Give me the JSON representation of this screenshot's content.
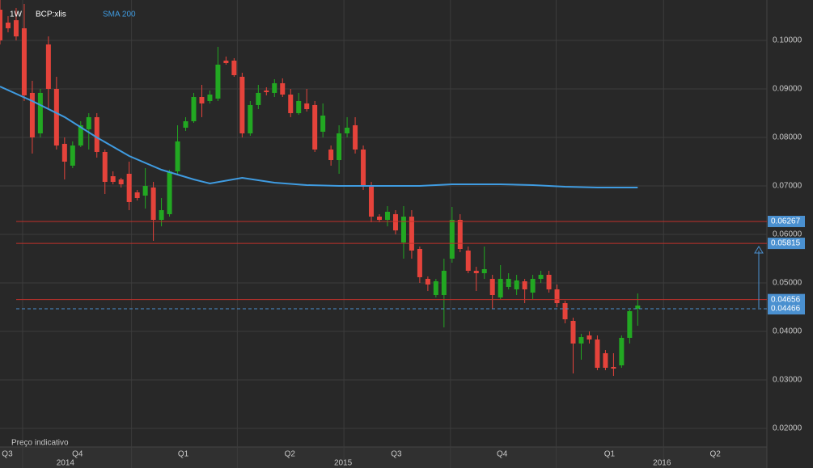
{
  "chart_data": {
    "type": "candlestick",
    "interval": "1W",
    "symbol": "BCP:xlis",
    "footnote": "Preço indicativo",
    "up_color": "#22a822",
    "down_color": "#e5433b",
    "x": [
      0,
      1,
      2,
      3,
      4,
      5,
      6,
      7,
      8,
      9,
      10,
      11,
      12,
      13,
      14,
      15,
      16,
      17,
      18,
      19,
      20,
      21,
      22,
      23,
      24,
      25,
      26,
      27,
      28,
      29,
      30,
      31,
      32,
      33,
      34,
      35,
      36,
      37,
      38,
      39,
      40,
      41,
      42,
      43,
      44,
      45,
      46,
      47,
      48,
      49,
      50,
      51,
      52,
      53,
      54,
      55,
      56,
      57,
      58,
      59,
      60,
      61,
      62,
      63,
      64,
      65,
      66,
      67,
      68,
      69,
      70,
      71,
      72,
      73,
      74,
      75,
      76,
      77,
      78,
      79
    ],
    "open": [
      0.10633,
      0.10367,
      0.10417,
      0.1025,
      0.08917,
      0.08083,
      0.09917,
      0.09,
      0.07867,
      0.07417,
      0.07833,
      0.08167,
      0.08417,
      0.077,
      0.072,
      0.07133,
      0.0725,
      0.06867,
      0.068,
      0.06967,
      0.063,
      0.06417,
      0.073,
      0.082,
      0.08333,
      0.08833,
      0.0875,
      0.088,
      0.09583,
      0.09583,
      0.0925,
      0.08083,
      0.08667,
      0.08967,
      0.08917,
      0.09117,
      0.08883,
      0.085,
      0.087,
      0.08667,
      0.08117,
      0.0775,
      0.07533,
      0.08083,
      0.0825,
      0.0775,
      0.07,
      0.06367,
      0.063,
      0.06417,
      0.05833,
      0.06367,
      0.057,
      0.05083,
      0.0475,
      0.0475,
      0.055,
      0.063,
      0.05667,
      0.0525,
      0.052,
      0.05083,
      0.047,
      0.04917,
      0.04867,
      0.05033,
      0.048,
      0.05083,
      0.05167,
      0.04867,
      0.04583,
      0.04217,
      0.0375,
      0.03917,
      0.03833,
      0.0355,
      0.03267,
      0.033,
      0.03867,
      0.04467
    ],
    "high": [
      0.10833,
      0.105,
      0.10667,
      0.1075,
      0.09167,
      0.09,
      0.10083,
      0.0925,
      0.08,
      0.07917,
      0.08333,
      0.085,
      0.085,
      0.0775,
      0.073,
      0.07167,
      0.075,
      0.06917,
      0.07367,
      0.07083,
      0.0675,
      0.07333,
      0.0825,
      0.08417,
      0.08917,
      0.09083,
      0.08967,
      0.09867,
      0.09667,
      0.09633,
      0.09333,
      0.0875,
      0.09083,
      0.09033,
      0.092,
      0.09217,
      0.09,
      0.08917,
      0.09,
      0.0875,
      0.087,
      0.07833,
      0.0825,
      0.08417,
      0.08417,
      0.07833,
      0.07083,
      0.06417,
      0.06583,
      0.065,
      0.06583,
      0.065,
      0.0575,
      0.05133,
      0.05083,
      0.055,
      0.06567,
      0.06417,
      0.0575,
      0.05333,
      0.0575,
      0.05167,
      0.05367,
      0.052,
      0.05167,
      0.05083,
      0.05167,
      0.0525,
      0.0525,
      0.04967,
      0.04633,
      0.04283,
      0.0395,
      0.04,
      0.03917,
      0.03617,
      0.0355,
      0.03917,
      0.0445,
      0.04783
    ],
    "low": [
      0.09917,
      0.10167,
      0.1,
      0.0875,
      0.07667,
      0.08,
      0.08583,
      0.0775,
      0.07133,
      0.07367,
      0.078,
      0.0775,
      0.07583,
      0.06833,
      0.07033,
      0.06967,
      0.065,
      0.067,
      0.06533,
      0.05867,
      0.06167,
      0.06367,
      0.0725,
      0.08133,
      0.083,
      0.08417,
      0.087,
      0.0875,
      0.095,
      0.0925,
      0.08,
      0.08033,
      0.08583,
      0.08867,
      0.08833,
      0.08833,
      0.08417,
      0.08467,
      0.08533,
      0.077,
      0.08,
      0.07417,
      0.0725,
      0.08,
      0.07667,
      0.06917,
      0.0625,
      0.0625,
      0.06167,
      0.06,
      0.055,
      0.055,
      0.05,
      0.04833,
      0.047,
      0.04083,
      0.05417,
      0.05633,
      0.052,
      0.04833,
      0.05083,
      0.04467,
      0.04667,
      0.04867,
      0.0475,
      0.04583,
      0.04667,
      0.05,
      0.048,
      0.045,
      0.04167,
      0.03133,
      0.03417,
      0.0375,
      0.032,
      0.032,
      0.03083,
      0.0325,
      0.0375,
      0.04117
    ],
    "close": [
      0.1,
      0.1025,
      0.10083,
      0.08867,
      0.08,
      0.08917,
      0.09,
      0.07833,
      0.075,
      0.07833,
      0.0825,
      0.08417,
      0.077,
      0.07083,
      0.07083,
      0.07033,
      0.06667,
      0.0675,
      0.07,
      0.063,
      0.065,
      0.073,
      0.07917,
      0.08333,
      0.08833,
      0.087,
      0.08883,
      0.095,
      0.09533,
      0.09283,
      0.08083,
      0.08667,
      0.08917,
      0.08933,
      0.09117,
      0.08883,
      0.085,
      0.0875,
      0.08583,
      0.0775,
      0.0845,
      0.07533,
      0.08083,
      0.082,
      0.0775,
      0.07,
      0.06367,
      0.063,
      0.06467,
      0.06083,
      0.06367,
      0.05667,
      0.05117,
      0.04967,
      0.05033,
      0.0525,
      0.063,
      0.057,
      0.0525,
      0.052,
      0.05283,
      0.0475,
      0.05083,
      0.05083,
      0.0505,
      0.04867,
      0.05083,
      0.05167,
      0.04867,
      0.04583,
      0.0425,
      0.0375,
      0.03883,
      0.03833,
      0.0325,
      0.0325,
      0.03233,
      0.03867,
      0.04417,
      0.04533
    ],
    "sma": {
      "name": "SMA 200",
      "color": "#3f9be0",
      "x": [
        0,
        4,
        8,
        12,
        16,
        20,
        24,
        26,
        30,
        34,
        38,
        42,
        46,
        52,
        56,
        62,
        66,
        70,
        74,
        79
      ],
      "values": [
        0.0905,
        0.0875,
        0.0842,
        0.08,
        0.07617,
        0.07333,
        0.07133,
        0.0705,
        0.07167,
        0.07067,
        0.07017,
        0.07,
        0.07,
        0.07,
        0.07033,
        0.07033,
        0.07017,
        0.06983,
        0.06967,
        0.06967
      ]
    },
    "levels": [
      {
        "value": 0.04466,
        "label": "0.04466",
        "color": "#4a90d0",
        "style": "dashed"
      },
      {
        "value": 0.06267,
        "label": "0.06267",
        "color": "#c0302a",
        "style": "solid"
      },
      {
        "value": 0.05815,
        "label": "0.05815",
        "color": "#c0302a",
        "style": "solid"
      },
      {
        "value": 0.04656,
        "label": "0.04656",
        "color": "#c0302a",
        "style": "solid"
      }
    ],
    "ylim": [
      0.01617,
      0.10833
    ],
    "yticks": [
      {
        "value": 0.02,
        "label": "0.02000"
      },
      {
        "value": 0.03,
        "label": "0.03000"
      },
      {
        "value": 0.04,
        "label": "0.04000"
      },
      {
        "value": 0.05,
        "label": "0.05000"
      },
      {
        "value": 0.06,
        "label": "0.06000"
      },
      {
        "value": 0.07,
        "label": "0.07000"
      },
      {
        "value": 0.08,
        "label": "0.08000"
      },
      {
        "value": 0.09,
        "label": "0.09000"
      },
      {
        "value": 0.1,
        "label": "0.10000"
      }
    ],
    "xlim": [
      0,
      95
    ],
    "xticks": [
      2.8,
      16.3,
      29.4,
      42.6,
      55.8,
      68.9,
      82.2
    ],
    "quarter_labels": [
      {
        "value": 0.9,
        "label": "Q3"
      },
      {
        "value": 9.6,
        "label": "Q4"
      },
      {
        "value": 22.7,
        "label": "Q1"
      },
      {
        "value": 35.9,
        "label": "Q2"
      },
      {
        "value": 49.1,
        "label": "Q3"
      },
      {
        "value": 62.2,
        "label": "Q4"
      },
      {
        "value": 75.5,
        "label": "Q1"
      },
      {
        "value": 88.6,
        "label": "Q2"
      }
    ],
    "year_labels": [
      {
        "value": 8.1,
        "label": "2014"
      },
      {
        "value": 42.5,
        "label": "2015"
      },
      {
        "value": 82.0,
        "label": "2016"
      }
    ]
  }
}
